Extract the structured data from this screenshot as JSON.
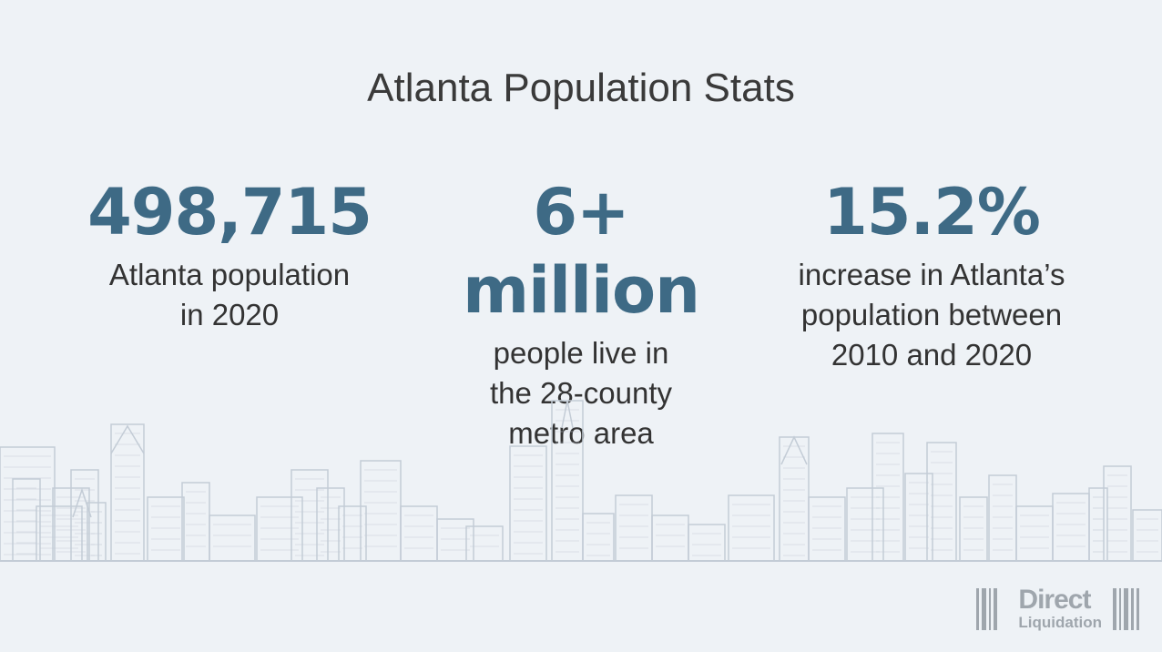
{
  "title": "Atlanta Population Stats",
  "stats": [
    {
      "value": "498,715",
      "description": "Atlanta population\nin 2020"
    },
    {
      "value": "6+ million",
      "description": "people live in\nthe 28-county\nmetro area"
    },
    {
      "value": "15.2%",
      "description": "increase in Atlanta’s\npopulation between\n2010 and 2020"
    }
  ],
  "logo": {
    "line1": "Direct",
    "line2": "Liquidation"
  },
  "colors": {
    "background": "#eef2f6",
    "accent": "#3e6a85",
    "skyline": "#c3ccd6",
    "logo": "#9fa6ad"
  }
}
